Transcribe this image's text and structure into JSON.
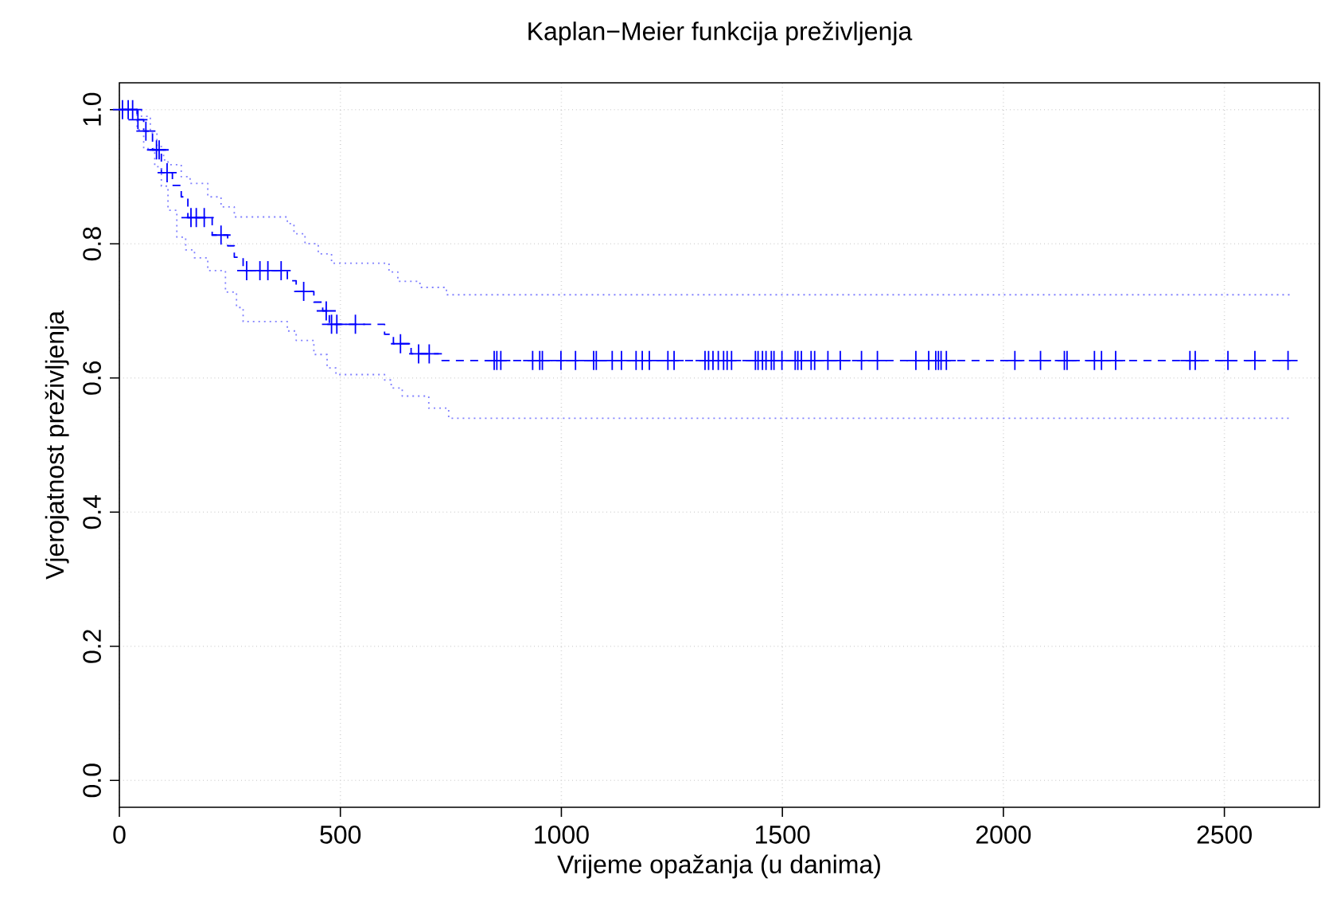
{
  "chart_data": {
    "type": "step",
    "title": "Kaplan−Meier funkcija preživljenja",
    "xlabel": "Vrijeme opažanja (u danima)",
    "ylabel": "Vjerojatnost preživljenja",
    "xlim": [
      0,
      2715
    ],
    "xticks": [
      0,
      500,
      1000,
      1500,
      2000,
      2500
    ],
    "ylim": [
      -0.04,
      1.04
    ],
    "yticks": [
      {
        "value": 0,
        "label": "0.0"
      },
      {
        "value": 0.2,
        "label": "0.2"
      },
      {
        "value": 0.4,
        "label": "0.4"
      },
      {
        "value": 0.6,
        "label": "0.6"
      },
      {
        "value": 0.8,
        "label": "0.8"
      },
      {
        "value": 1,
        "label": "1.0"
      }
    ],
    "grid": true,
    "series": [
      {
        "color": "#0000ff",
        "line_style": "dashed",
        "x": [
          0,
          40,
          55,
          75,
          95,
          120,
          140,
          155,
          210,
          245,
          260,
          280,
          380,
          400,
          440,
          460,
          475,
          600,
          620,
          660,
          730,
          2650
        ],
        "values": [
          1.0,
          0.985,
          0.968,
          0.94,
          0.906,
          0.887,
          0.87,
          0.839,
          0.813,
          0.797,
          0.78,
          0.76,
          0.745,
          0.729,
          0.713,
          0.7,
          0.68,
          0.665,
          0.651,
          0.636,
          0.626,
          0.626
        ]
      },
      {
        "type": "step",
        "color": "#8080ff",
        "line_style": "dotted",
        "x": [
          0,
          50,
          70,
          85,
          100,
          110,
          140,
          160,
          200,
          230,
          260,
          380,
          395,
          420,
          450,
          480,
          610,
          630,
          680,
          740,
          2650
        ],
        "values": [
          1.0,
          0.99,
          0.965,
          0.945,
          0.925,
          0.918,
          0.9,
          0.89,
          0.87,
          0.855,
          0.84,
          0.83,
          0.815,
          0.8,
          0.785,
          0.771,
          0.758,
          0.744,
          0.735,
          0.724,
          0.724
        ]
      },
      {
        "type": "step",
        "color": "#8080ff",
        "line_style": "dotted",
        "x": [
          0,
          40,
          55,
          80,
          95,
          110,
          130,
          150,
          170,
          200,
          240,
          265,
          280,
          380,
          400,
          440,
          470,
          490,
          600,
          615,
          640,
          700,
          745,
          2650
        ],
        "values": [
          1.0,
          0.97,
          0.942,
          0.915,
          0.886,
          0.85,
          0.81,
          0.791,
          0.779,
          0.76,
          0.728,
          0.705,
          0.684,
          0.67,
          0.656,
          0.635,
          0.615,
          0.605,
          0.597,
          0.585,
          0.573,
          0.555,
          0.54,
          0.54
        ]
      },
      {
        "type": "scatter",
        "color": "#0000ff",
        "marker": "cross",
        "x": [
          7,
          20,
          30,
          42,
          60,
          84,
          90,
          108,
          162,
          174,
          192,
          230,
          288,
          318,
          336,
          366,
          417,
          468,
          480,
          492,
          534,
          636,
          677,
          701,
          848,
          854,
          863,
          935,
          951,
          957,
          999,
          1032,
          1073,
          1079,
          1115,
          1136,
          1169,
          1183,
          1199,
          1241,
          1255,
          1325,
          1333,
          1343,
          1355,
          1367,
          1375,
          1385,
          1439,
          1445,
          1455,
          1463,
          1475,
          1481,
          1499,
          1529,
          1535,
          1543,
          1565,
          1573,
          1603,
          1631,
          1679,
          1715,
          1802,
          1831,
          1847,
          1853,
          1859,
          1871,
          2026,
          2084,
          2138,
          2144,
          2206,
          2222,
          2254,
          2422,
          2434,
          2508,
          2569,
          2644
        ],
        "values": [
          1.0,
          1.0,
          1.0,
          0.985,
          0.968,
          0.94,
          0.94,
          0.906,
          0.839,
          0.839,
          0.839,
          0.813,
          0.76,
          0.76,
          0.76,
          0.76,
          0.729,
          0.7,
          0.68,
          0.68,
          0.68,
          0.651,
          0.636,
          0.636,
          0.626,
          0.626,
          0.626,
          0.626,
          0.626,
          0.626,
          0.626,
          0.626,
          0.626,
          0.626,
          0.626,
          0.626,
          0.626,
          0.626,
          0.626,
          0.626,
          0.626,
          0.626,
          0.626,
          0.626,
          0.626,
          0.626,
          0.626,
          0.626,
          0.626,
          0.626,
          0.626,
          0.626,
          0.626,
          0.626,
          0.626,
          0.626,
          0.626,
          0.626,
          0.626,
          0.626,
          0.626,
          0.626,
          0.626,
          0.626,
          0.626,
          0.626,
          0.626,
          0.626,
          0.626,
          0.626,
          0.626,
          0.626,
          0.626,
          0.626,
          0.626,
          0.626,
          0.626,
          0.626,
          0.626,
          0.626,
          0.626,
          0.626
        ]
      }
    ]
  }
}
